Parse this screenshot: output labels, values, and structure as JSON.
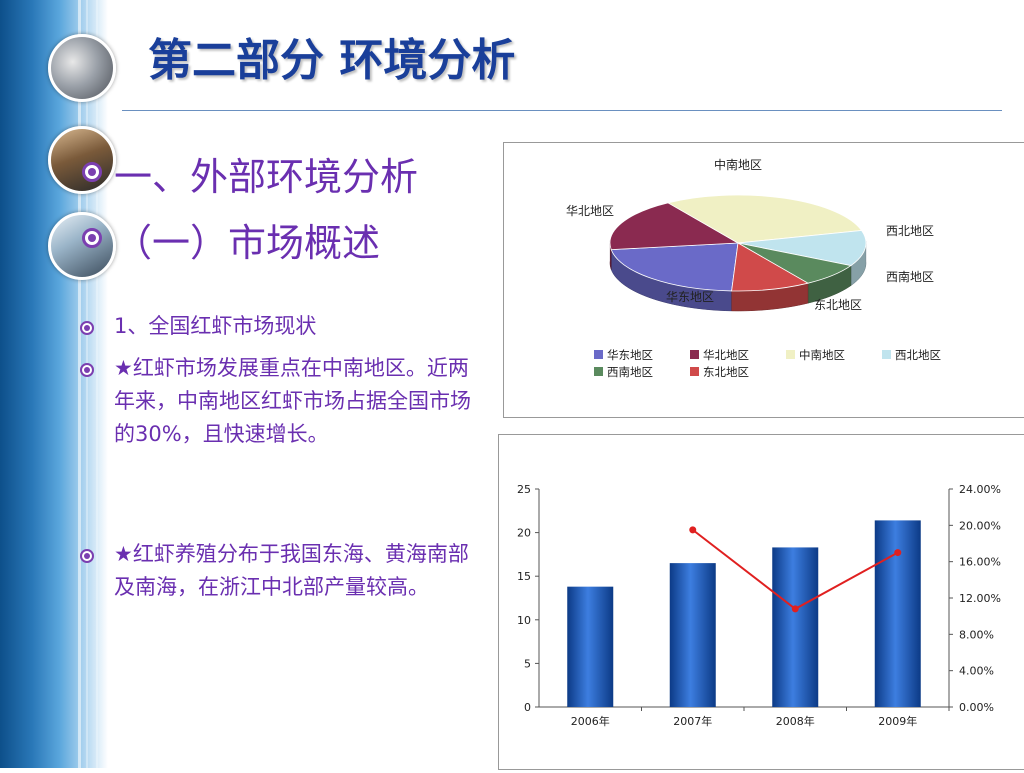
{
  "slide": {
    "title": "第二部分 环境分析",
    "heading1": "一、外部环境分析",
    "heading2": "（一）市场概述",
    "bullets": [
      "1、全国红虾市场现状",
      "★红虾市场发展重点在中南地区。近两年来，中南地区红虾市场占据全国市场的30%，且快速增长。",
      "★红虾养殖分布于我国东海、黄海南部及南海，在浙江中北部产量较高。"
    ]
  },
  "colors": {
    "title": "#1a3f9a",
    "text": "#6a2fb0",
    "bar": "#1f5fb8",
    "line": "#e02020"
  },
  "chart_data": [
    {
      "type": "pie",
      "categories": [
        "华东地区",
        "华北地区",
        "中南地区",
        "西北地区",
        "西南地区",
        "东北地区"
      ],
      "values": [
        22,
        18,
        30,
        12,
        8,
        10
      ],
      "colors": [
        "#6a6ac8",
        "#8a2a50",
        "#f0f0c4",
        "#c0e4ee",
        "#5a8a5e",
        "#d04a4a"
      ],
      "legend": "bottom"
    },
    {
      "type": "bar",
      "categories": [
        "2006年",
        "2007年",
        "2008年",
        "2009年"
      ],
      "series": [
        {
          "values": [
            13.8,
            16.5,
            18.3,
            21.4
          ],
          "axis": "left"
        },
        {
          "values": [
            null,
            19.5,
            10.8,
            17.0
          ],
          "axis": "right",
          "render": "line"
        }
      ],
      "ylim": [
        0,
        25
      ],
      "y_ticks": [
        "0",
        "5",
        "10",
        "15",
        "20",
        "25"
      ],
      "y2lim": [
        0,
        24
      ],
      "y2_ticks": [
        "0.00%",
        "4.00%",
        "8.00%",
        "12.00%",
        "16.00%",
        "20.00%",
        "24.00%"
      ]
    }
  ]
}
